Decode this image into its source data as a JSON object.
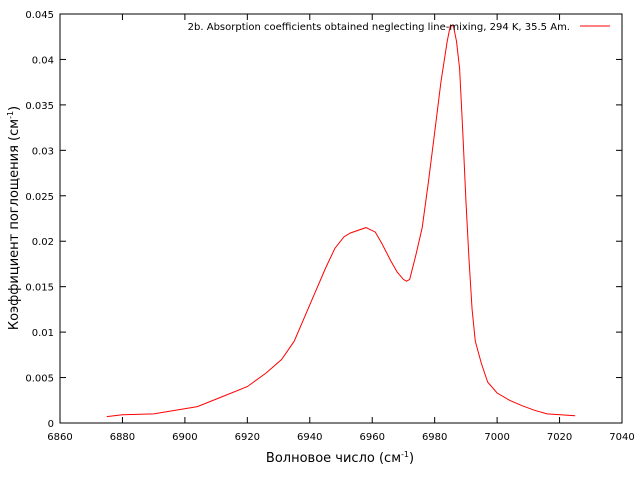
{
  "chart_data": {
    "type": "line",
    "xlabel": "Волновое число (см",
    "xlabel_sup": "-1",
    "xlabel_tail": ")",
    "ylabel": "Коэффициент поглощения (см",
    "ylabel_sup": "-1",
    "ylabel_tail": ")",
    "xlim": [
      6860,
      7040
    ],
    "ylim": [
      0,
      0.045
    ],
    "xticks": [
      "6860",
      "6880",
      "6900",
      "6920",
      "6940",
      "6960",
      "6980",
      "7000",
      "7020",
      "7040"
    ],
    "yticks": [
      "0",
      "0.005",
      "0.01",
      "0.015",
      "0.02",
      "0.025",
      "0.03",
      "0.035",
      "0.04",
      "0.045"
    ],
    "grid": false,
    "legend_position": "top-right",
    "series": [
      {
        "name": "2b. Absorption coefficients obtained neglecting line-mixing, 294 K, 35.5 Am.",
        "color": "#ff0000",
        "x": [
          6875,
          6880,
          6890,
          6897,
          6904,
          6912,
          6920,
          6926,
          6931,
          6935,
          6940,
          6945,
          6948,
          6951,
          6953,
          6958,
          6961,
          6963,
          6966,
          6968,
          6970,
          6971,
          6972,
          6974,
          6976,
          6978,
          6980,
          6982,
          6984,
          6985,
          6986,
          6987,
          6988,
          6989,
          6990,
          6991,
          6992,
          6993,
          6995,
          6997,
          7000,
          7004,
          7008,
          7012,
          7016,
          7025
        ],
        "y": [
          0.0007,
          0.0009,
          0.001,
          0.0014,
          0.0018,
          0.0029,
          0.004,
          0.0055,
          0.007,
          0.009,
          0.013,
          0.017,
          0.0192,
          0.0205,
          0.0209,
          0.0215,
          0.021,
          0.0198,
          0.0178,
          0.0166,
          0.0158,
          0.0156,
          0.0158,
          0.0185,
          0.0215,
          0.0265,
          0.032,
          0.0375,
          0.042,
          0.0437,
          0.0437,
          0.042,
          0.039,
          0.032,
          0.0245,
          0.018,
          0.0125,
          0.009,
          0.0065,
          0.0045,
          0.0033,
          0.0025,
          0.0019,
          0.0014,
          0.001,
          0.0008
        ]
      }
    ]
  }
}
